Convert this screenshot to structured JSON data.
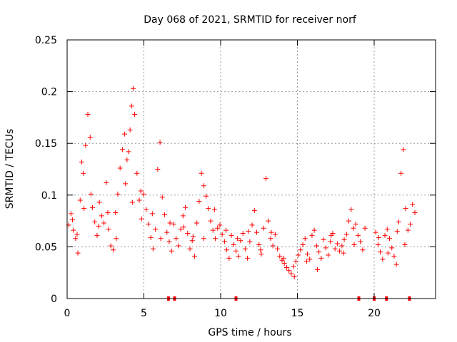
{
  "chart_data": {
    "type": "scatter",
    "title": "Day 068 of 2021, SRMTID for receiver norf",
    "xlabel": "GPS time / hours",
    "ylabel": "SRMTID / TECUs",
    "xlim": [
      0,
      24
    ],
    "ylim": [
      0,
      0.25
    ],
    "x_ticks": [
      {
        "value": 0,
        "label": "0"
      },
      {
        "value": 5,
        "label": "5"
      },
      {
        "value": 10,
        "label": "10"
      },
      {
        "value": 15,
        "label": "15"
      },
      {
        "value": 20,
        "label": "20"
      }
    ],
    "y_ticks": [
      {
        "value": 0,
        "label": "0"
      },
      {
        "value": 0.05,
        "label": "0.05"
      },
      {
        "value": 0.1,
        "label": "0.1"
      },
      {
        "value": 0.15,
        "label": "0.15"
      },
      {
        "value": 0.2,
        "label": "0.2"
      },
      {
        "value": 0.25,
        "label": "0.25"
      }
    ],
    "grid": true,
    "legend": "none",
    "marker": "plus",
    "color": "#ff0000",
    "sampling_note": "representative sampled points",
    "series": [
      {
        "name": "SRMTID",
        "points": [
          [
            0.1,
            0.071
          ],
          [
            0.25,
            0.082
          ],
          [
            0.4,
            0.066
          ],
          [
            0.55,
            0.058
          ],
          [
            0.7,
            0.044
          ],
          [
            0.85,
            0.095
          ],
          [
            0.95,
            0.132
          ],
          [
            1.05,
            0.121
          ],
          [
            1.2,
            0.148
          ],
          [
            1.35,
            0.178
          ],
          [
            1.5,
            0.156
          ],
          [
            1.65,
            0.088
          ],
          [
            1.8,
            0.074
          ],
          [
            1.95,
            0.061
          ],
          [
            2.1,
            0.093
          ],
          [
            2.25,
            0.08
          ],
          [
            2.4,
            0.073
          ],
          [
            2.55,
            0.112
          ],
          [
            2.7,
            0.067
          ],
          [
            2.85,
            0.051
          ],
          [
            3.0,
            0.047
          ],
          [
            3.15,
            0.083
          ],
          [
            3.3,
            0.101
          ],
          [
            3.45,
            0.126
          ],
          [
            3.6,
            0.144
          ],
          [
            3.75,
            0.159
          ],
          [
            3.9,
            0.134
          ],
          [
            4.0,
            0.142
          ],
          [
            4.1,
            0.163
          ],
          [
            4.2,
            0.186
          ],
          [
            4.3,
            0.203
          ],
          [
            4.4,
            0.178
          ],
          [
            4.55,
            0.121
          ],
          [
            4.7,
            0.095
          ],
          [
            4.85,
            0.077
          ],
          [
            5.0,
            0.101
          ],
          [
            5.15,
            0.086
          ],
          [
            5.3,
            0.072
          ],
          [
            5.45,
            0.059
          ],
          [
            5.6,
            0.048
          ],
          [
            5.75,
            0.067
          ],
          [
            5.9,
            0.125
          ],
          [
            6.05,
            0.151
          ],
          [
            6.2,
            0.098
          ],
          [
            6.35,
            0.081
          ],
          [
            6.5,
            0.064
          ],
          [
            6.65,
            0.055
          ],
          [
            6.8,
            0.046
          ],
          [
            6.95,
            0.072
          ],
          [
            7.1,
            0.058
          ],
          [
            7.25,
            0.051
          ],
          [
            7.4,
            0.067
          ],
          [
            7.55,
            0.08
          ],
          [
            7.7,
            0.088
          ],
          [
            7.85,
            0.063
          ],
          [
            8.0,
            0.048
          ],
          [
            8.15,
            0.056
          ],
          [
            8.3,
            0.041
          ],
          [
            8.45,
            0.073
          ],
          [
            8.6,
            0.094
          ],
          [
            8.75,
            0.121
          ],
          [
            8.9,
            0.109
          ],
          [
            9.05,
            0.099
          ],
          [
            9.2,
            0.087
          ],
          [
            9.35,
            0.075
          ],
          [
            9.5,
            0.066
          ],
          [
            9.65,
            0.058
          ],
          [
            9.8,
            0.068
          ],
          [
            9.95,
            0.071
          ],
          [
            10.1,
            0.062
          ],
          [
            10.25,
            0.055
          ],
          [
            10.4,
            0.047
          ],
          [
            10.55,
            0.039
          ],
          [
            10.7,
            0.061
          ],
          [
            10.85,
            0.052
          ],
          [
            11.0,
            0.046
          ],
          [
            11.15,
            0.041
          ],
          [
            11.3,
            0.056
          ],
          [
            11.45,
            0.063
          ],
          [
            11.6,
            0.048
          ],
          [
            11.75,
            0.039
          ],
          [
            11.9,
            0.055
          ],
          [
            12.05,
            0.071
          ],
          [
            12.2,
            0.085
          ],
          [
            12.35,
            0.064
          ],
          [
            12.5,
            0.052
          ],
          [
            12.65,
            0.043
          ],
          [
            12.8,
            0.068
          ],
          [
            12.95,
            0.116
          ],
          [
            13.1,
            0.075
          ],
          [
            13.25,
            0.058
          ],
          [
            13.4,
            0.051
          ],
          [
            13.55,
            0.062
          ],
          [
            13.7,
            0.048
          ],
          [
            13.85,
            0.041
          ],
          [
            14.0,
            0.037
          ],
          [
            14.15,
            0.034
          ],
          [
            14.3,
            0.03
          ],
          [
            14.45,
            0.027
          ],
          [
            14.6,
            0.024
          ],
          [
            14.75,
            0.031
          ],
          [
            14.9,
            0.036
          ],
          [
            15.05,
            0.042
          ],
          [
            15.2,
            0.047
          ],
          [
            15.35,
            0.052
          ],
          [
            15.5,
            0.058
          ],
          [
            15.65,
            0.043
          ],
          [
            15.8,
            0.038
          ],
          [
            15.95,
            0.061
          ],
          [
            16.1,
            0.066
          ],
          [
            16.25,
            0.051
          ],
          [
            16.4,
            0.045
          ],
          [
            16.55,
            0.039
          ],
          [
            16.7,
            0.057
          ],
          [
            16.85,
            0.049
          ],
          [
            17.0,
            0.042
          ],
          [
            17.15,
            0.055
          ],
          [
            17.3,
            0.063
          ],
          [
            17.45,
            0.048
          ],
          [
            17.6,
            0.053
          ],
          [
            17.75,
            0.046
          ],
          [
            17.9,
            0.051
          ],
          [
            18.05,
            0.057
          ],
          [
            18.2,
            0.062
          ],
          [
            18.35,
            0.075
          ],
          [
            18.5,
            0.086
          ],
          [
            18.65,
            0.068
          ],
          [
            18.8,
            0.072
          ],
          [
            18.95,
            0.061
          ],
          [
            19.1,
            0.055
          ],
          [
            19.25,
            0.047
          ],
          [
            19.4,
            0.068
          ],
          [
            20.1,
            0.064
          ],
          [
            20.25,
            0.052
          ],
          [
            20.4,
            0.045
          ],
          [
            20.55,
            0.038
          ],
          [
            20.7,
            0.061
          ],
          [
            20.85,
            0.067
          ],
          [
            21.0,
            0.058
          ],
          [
            21.15,
            0.049
          ],
          [
            21.3,
            0.041
          ],
          [
            21.45,
            0.033
          ],
          [
            21.6,
            0.074
          ],
          [
            21.75,
            0.121
          ],
          [
            21.9,
            0.144
          ],
          [
            22.05,
            0.087
          ],
          [
            22.2,
            0.066
          ],
          [
            22.35,
            0.072
          ],
          [
            22.5,
            0.091
          ],
          [
            22.65,
            0.083
          ],
          [
            0.35,
            0.076
          ],
          [
            0.65,
            0.062
          ],
          [
            1.1,
            0.087
          ],
          [
            1.55,
            0.101
          ],
          [
            2.05,
            0.07
          ],
          [
            2.65,
            0.083
          ],
          [
            3.2,
            0.058
          ],
          [
            3.8,
            0.111
          ],
          [
            4.25,
            0.093
          ],
          [
            4.8,
            0.104
          ],
          [
            5.55,
            0.082
          ],
          [
            6.1,
            0.058
          ],
          [
            6.7,
            0.073
          ],
          [
            7.6,
            0.069
          ],
          [
            8.2,
            0.06
          ],
          [
            8.9,
            0.058
          ],
          [
            9.6,
            0.086
          ],
          [
            10.35,
            0.066
          ],
          [
            11.1,
            0.058
          ],
          [
            11.8,
            0.065
          ],
          [
            12.6,
            0.047
          ],
          [
            13.3,
            0.064
          ],
          [
            14.1,
            0.039
          ],
          [
            14.8,
            0.021
          ],
          [
            15.6,
            0.036
          ],
          [
            16.3,
            0.028
          ],
          [
            17.2,
            0.061
          ],
          [
            18.0,
            0.044
          ],
          [
            18.7,
            0.052
          ],
          [
            20.3,
            0.059
          ],
          [
            20.9,
            0.044
          ],
          [
            21.5,
            0.065
          ],
          [
            22.0,
            0.052
          ]
        ]
      }
    ],
    "gap_markers_x": [
      6.6,
      7.0,
      11.0,
      19.0,
      20.0,
      20.8,
      22.3
    ]
  }
}
